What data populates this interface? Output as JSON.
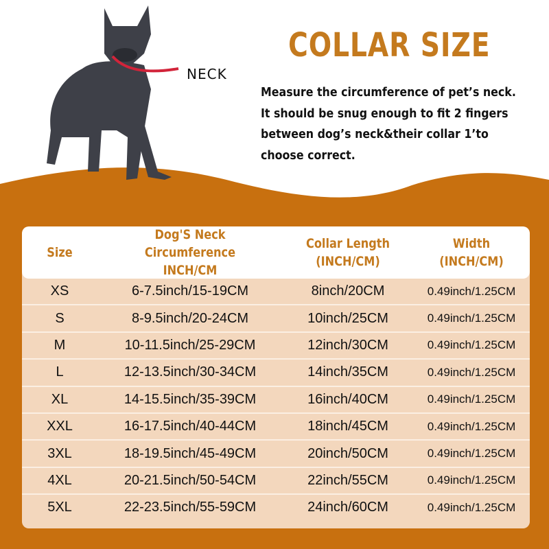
{
  "colors": {
    "accent": "#c47a1e",
    "band": "#c8700f",
    "table_row": "#f3d7bd"
  },
  "image": {
    "subject": "french-bulldog",
    "neck_label": "NECK"
  },
  "title": "COLLAR SIZE",
  "description": [
    "Measure the circumference of pet’s neck.",
    "It should be snug enough to fit 2 fingers",
    "between dog’s neck&their collar 1’to",
    "choose correct."
  ],
  "table": {
    "headers": [
      [
        "Size"
      ],
      [
        "Dog'S Neck Circumference",
        "INCH/CM"
      ],
      [
        "Collar Length",
        "(INCH/CM)"
      ],
      [
        "Width",
        "(INCH/CM)"
      ]
    ],
    "rows": [
      [
        "XS",
        "6-7.5inch/15-19CM",
        "8inch/20CM",
        "0.49inch/1.25CM"
      ],
      [
        "S",
        "8-9.5inch/20-24CM",
        "10inch/25CM",
        "0.49inch/1.25CM"
      ],
      [
        "M",
        "10-11.5inch/25-29CM",
        "12inch/30CM",
        "0.49inch/1.25CM"
      ],
      [
        "L",
        "12-13.5inch/30-34CM",
        "14inch/35CM",
        "0.49inch/1.25CM"
      ],
      [
        "XL",
        "14-15.5inch/35-39CM",
        "16inch/40CM",
        "0.49inch/1.25CM"
      ],
      [
        "XXL",
        "16-17.5inch/40-44CM",
        "18inch/45CM",
        "0.49inch/1.25CM"
      ],
      [
        "3XL",
        "18-19.5inch/45-49CM",
        "20inch/50CM",
        "0.49inch/1.25CM"
      ],
      [
        "4XL",
        "20-21.5inch/50-54CM",
        "22inch/55CM",
        "0.49inch/1.25CM"
      ],
      [
        "5XL",
        "22-23.5inch/55-59CM",
        "24inch/60CM",
        "0.49inch/1.25CM"
      ]
    ]
  }
}
